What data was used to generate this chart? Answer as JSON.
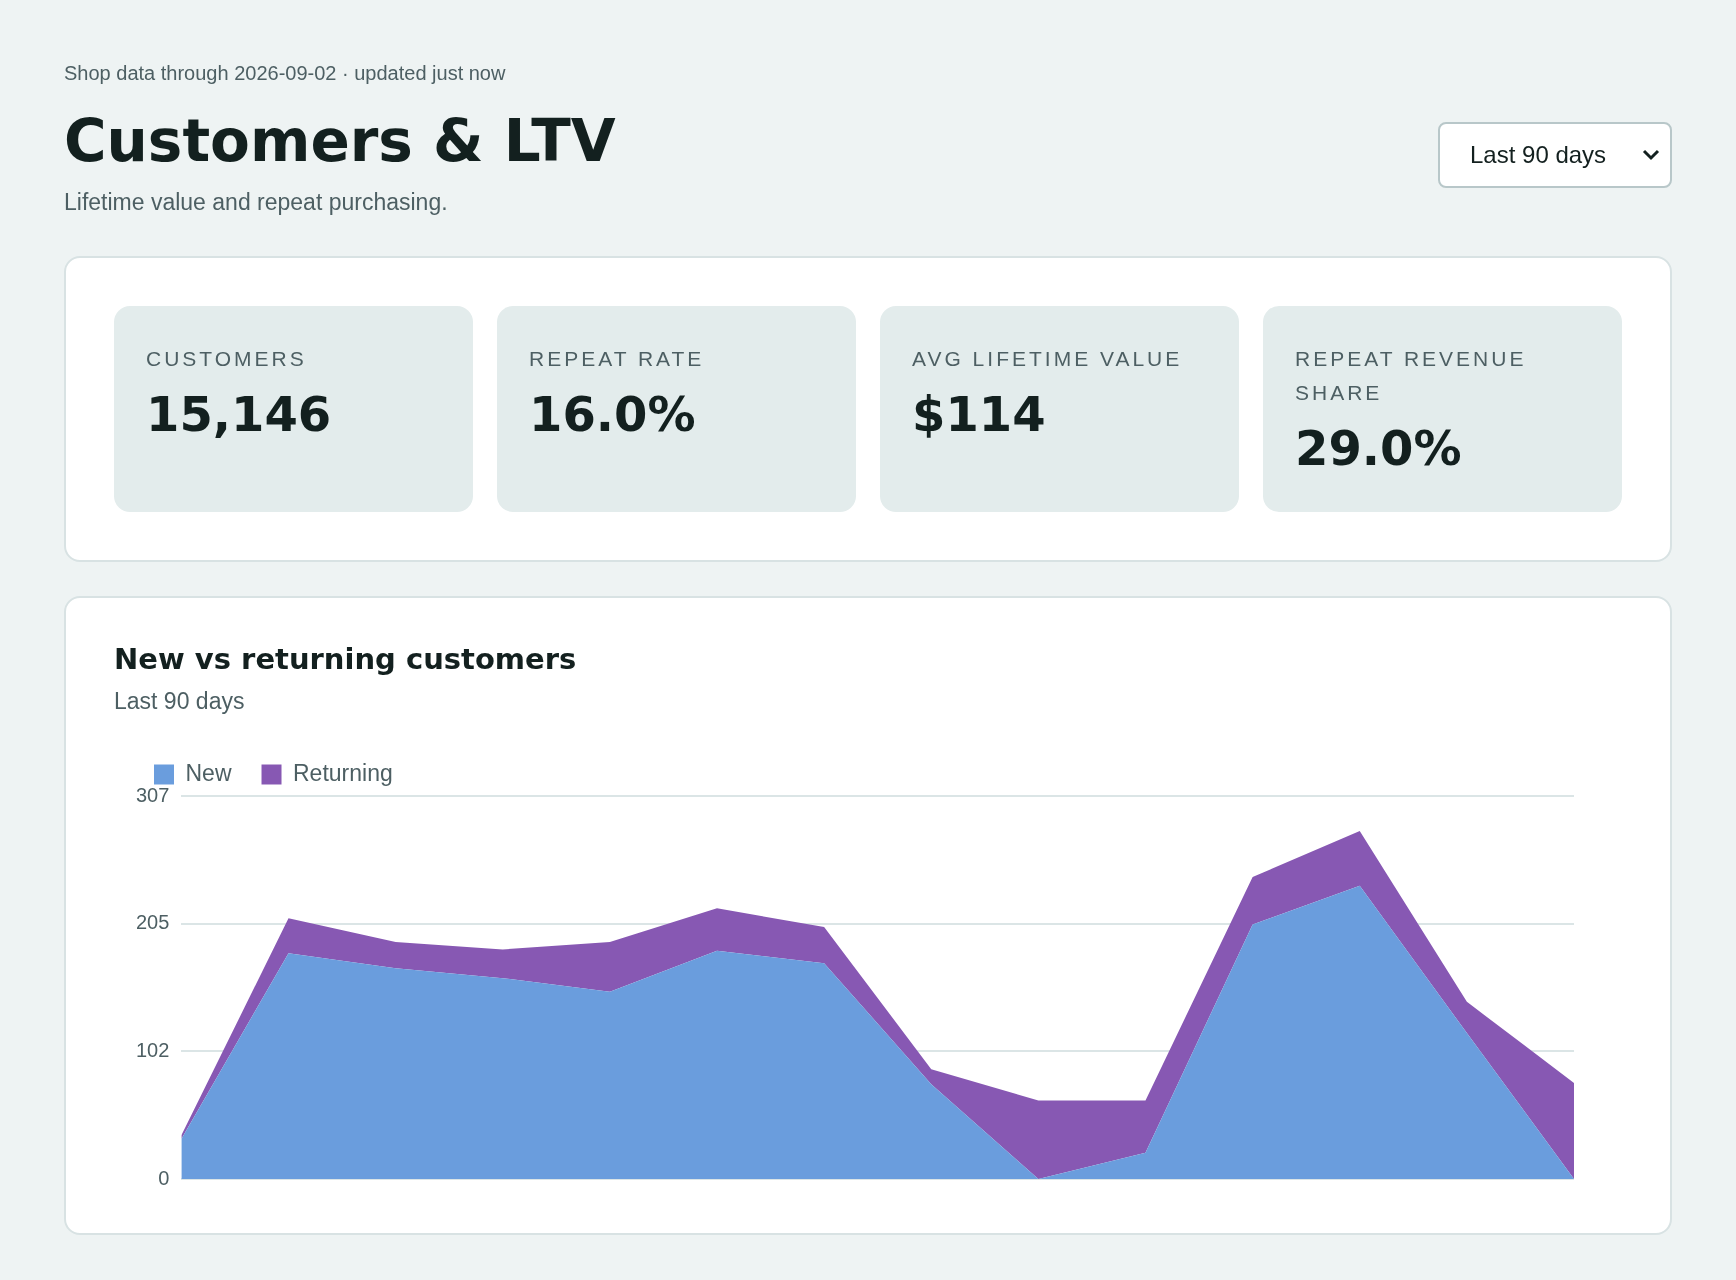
{
  "chart_data": [
    {
      "type": "other",
      "title": "Customers & LTV",
      "subtitle": "Lifetime value and repeat purchasing.",
      "annotations": [
        "Shop data through 2026-09-02 · updated just now",
        "Last 90 days"
      ],
      "categories": [
        "CUSTOMERS",
        "REPEAT RATE",
        "AVG LIFETIME VALUE",
        "REPEAT REVENUE SHARE"
      ],
      "value_labels": [
        "15,146",
        "16.0%",
        "$114",
        "29.0%"
      ]
    },
    {
      "type": "area",
      "title": "New vs returning customers",
      "subtitle": "Last 90 days",
      "stacked": true,
      "legend": "top left",
      "grid": "y",
      "tick_labels": "y",
      "categories": [
        null,
        null,
        null,
        null,
        null,
        null,
        null,
        null,
        null,
        null,
        null,
        null,
        null,
        null
      ],
      "ylim": [
        0,
        307
      ],
      "yticks": [
        0,
        {
          "value": 102.33,
          "label": "102"
        },
        {
          "value": 204.67,
          "label": "205"
        },
        307
      ],
      "series": [
        {
          "name": "New",
          "color": "#6a9ddd",
          "values": [
            32,
            181,
            169,
            161,
            150,
            183,
            173,
            76,
            0,
            21,
            204,
            235,
            117,
            0
          ]
        },
        {
          "name": "Returning",
          "color": "#8758b3",
          "values": [
            3,
            28,
            21,
            23,
            40,
            34,
            29,
            12,
            63,
            42,
            38,
            44,
            25,
            77
          ]
        }
      ]
    }
  ]
}
